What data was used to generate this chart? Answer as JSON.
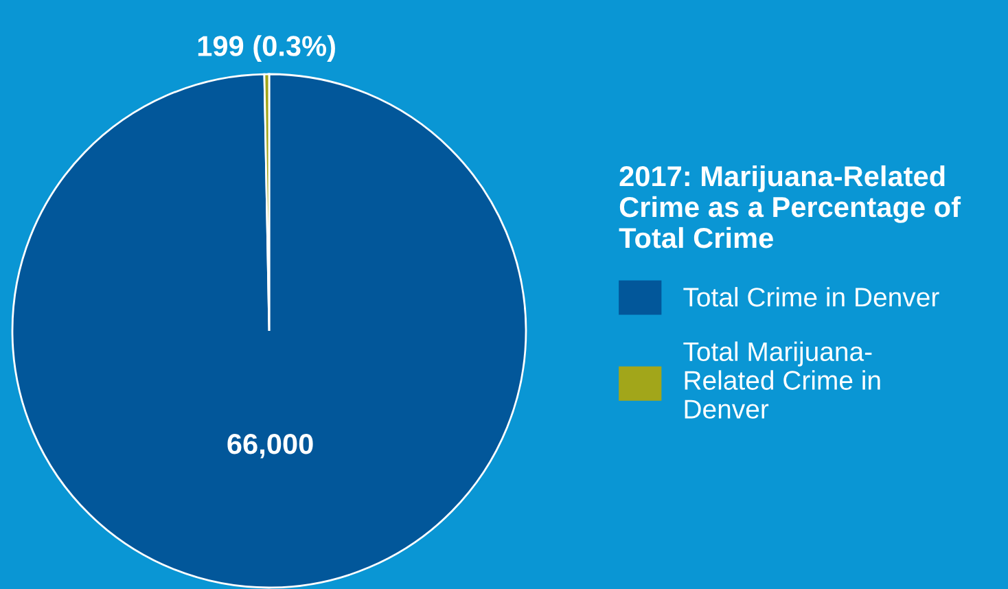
{
  "chart_data": {
    "type": "pie",
    "legend_title": "2017: Marijuana-Related\nCrime as a Percentage of\nTotal Crime",
    "categories": [
      "Total Crime in Denver",
      "Total Marijuana-\nRelated Crime in\nDenver"
    ],
    "values": [
      66000,
      199
    ],
    "value_labels": [
      "66,000",
      "199 (0.3%)"
    ],
    "colors": [
      "#02579a",
      "#a2a61a"
    ],
    "legend": "right"
  }
}
